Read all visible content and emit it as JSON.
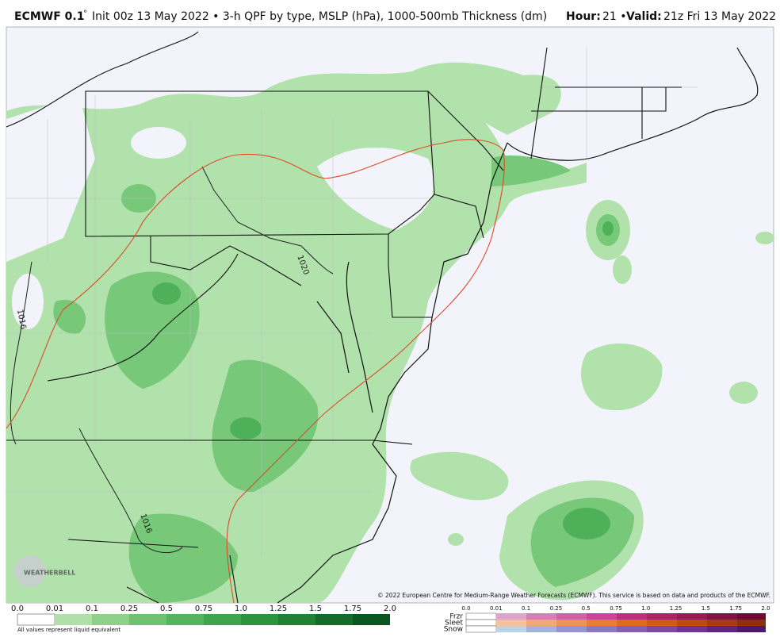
{
  "header": {
    "model": "ECMWF 0.1",
    "degree": "°",
    "description": "Init 00z 13 May 2022 • 3-h QPF by type, MSLP (hPa), 1000-500mb Thickness (dm)",
    "hour_label": "Hour:",
    "hour_value": "21 •",
    "valid_label": "Valid:",
    "valid_value": "21z Fri 13 May 2022"
  },
  "map": {
    "contour_labels": [
      "1020",
      "1016",
      "1016"
    ],
    "logo": "WEATHERBELL",
    "copyright": "© 2022 European Centre for Medium-Range Weather Forecasts (ECMWF). This service is based on data and products of the ECMWF."
  },
  "rain_legend": {
    "ticks": [
      "0.0",
      "0.01",
      "0.1",
      "0.25",
      "0.5",
      "0.75",
      "1.0",
      "1.25",
      "1.5",
      "1.75",
      "2.0"
    ],
    "note": "All values represent liquid equivalent"
  },
  "ptype_legend": {
    "ticks": [
      "0.0",
      "0.01",
      "0.1",
      "0.25",
      "0.5",
      "0.75",
      "1.0",
      "1.25",
      "1.5",
      "1.75",
      "2.0"
    ],
    "rows": [
      "Frzr",
      "Sleet",
      "Snow"
    ]
  }
}
